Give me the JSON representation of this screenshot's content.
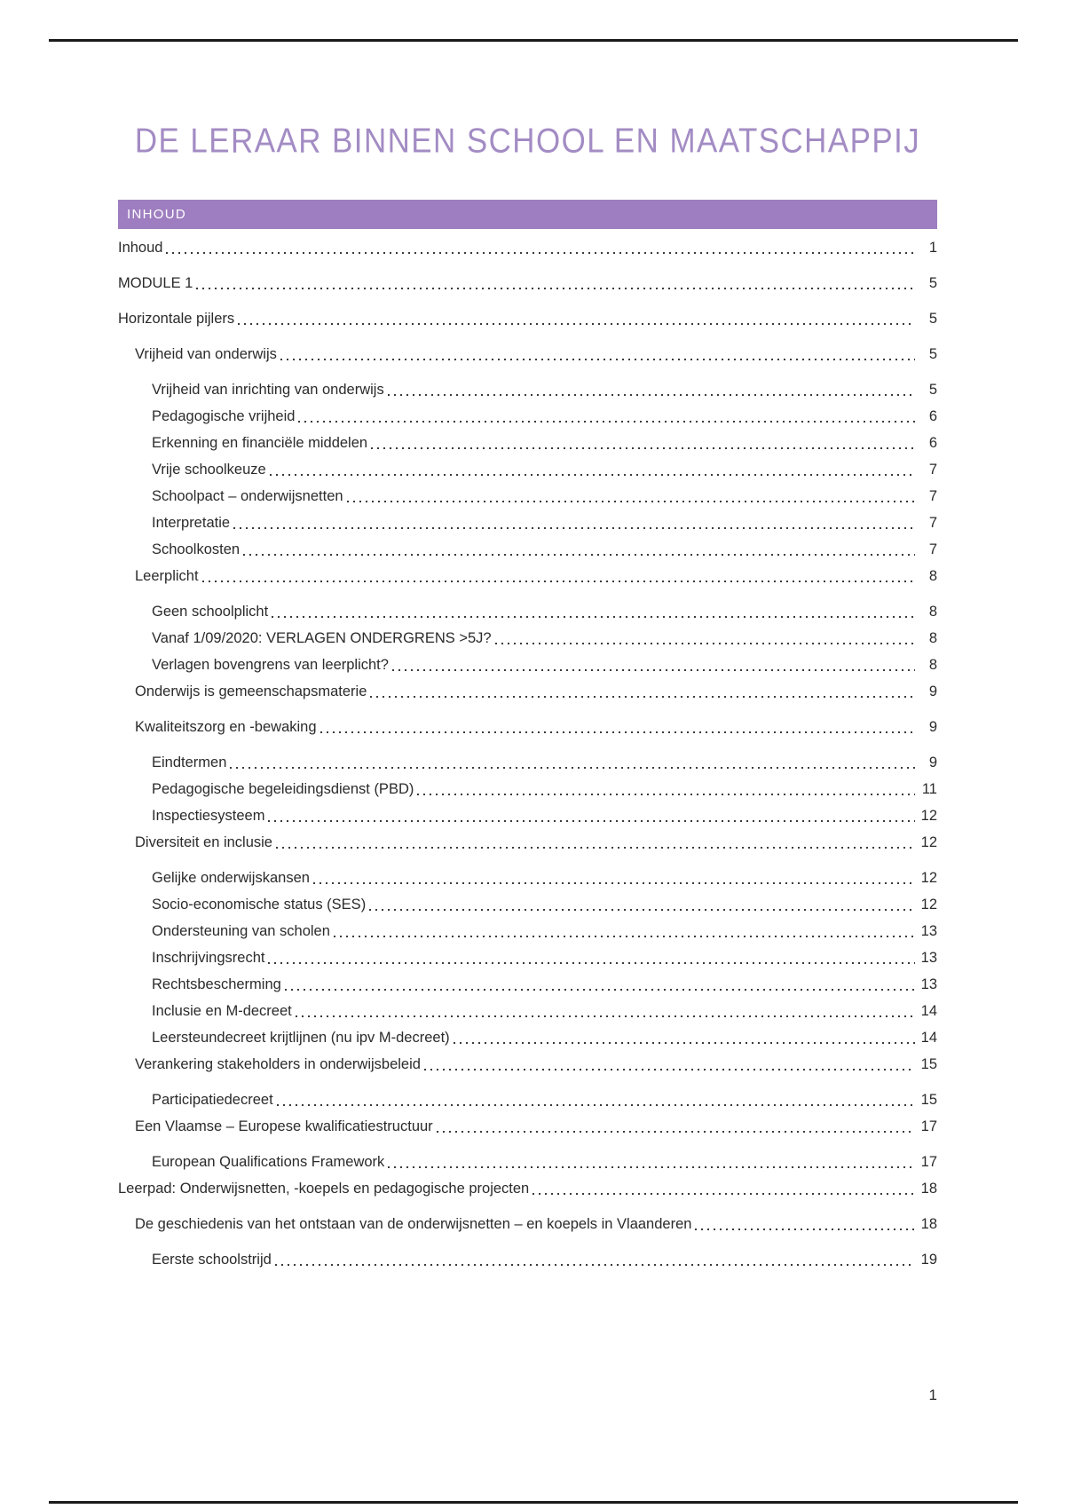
{
  "page": {
    "title": "DE LERAAR BINNEN SCHOOL EN MAATSCHAPPIJ",
    "footer_page_number": "1"
  },
  "toc": {
    "header": "INHOUD",
    "entries": [
      {
        "label": "Inhoud",
        "page": "1",
        "level": 0,
        "spaced": false
      },
      {
        "label": "MODULE 1",
        "page": "5",
        "level": 0,
        "spaced": true
      },
      {
        "label": "Horizontale pijlers",
        "page": "5",
        "level": 0,
        "spaced": true
      },
      {
        "label": "Vrijheid van onderwijs",
        "page": "5",
        "level": 1,
        "spaced": true
      },
      {
        "label": "Vrijheid van inrichting van onderwijs",
        "page": "5",
        "level": 2,
        "spaced": true
      },
      {
        "label": "Pedagogische vrijheid",
        "page": "6",
        "level": 2,
        "spaced": false
      },
      {
        "label": "Erkenning en financiële middelen",
        "page": "6",
        "level": 2,
        "spaced": false
      },
      {
        "label": "Vrije schoolkeuze",
        "page": "7",
        "level": 2,
        "spaced": false
      },
      {
        "label": "Schoolpact – onderwijsnetten",
        "page": "7",
        "level": 2,
        "spaced": false
      },
      {
        "label": "Interpretatie",
        "page": "7",
        "level": 2,
        "spaced": false
      },
      {
        "label": "Schoolkosten",
        "page": "7",
        "level": 2,
        "spaced": false
      },
      {
        "label": "Leerplicht",
        "page": "8",
        "level": 1,
        "spaced": false
      },
      {
        "label": "Geen schoolplicht",
        "page": "8",
        "level": 2,
        "spaced": true
      },
      {
        "label": "Vanaf 1/09/2020: VERLAGEN ONDERGRENS >5J?",
        "page": "8",
        "level": 2,
        "spaced": false
      },
      {
        "label": "Verlagen bovengrens van leerplicht?",
        "page": "8",
        "level": 2,
        "spaced": false
      },
      {
        "label": "Onderwijs is gemeenschapsmaterie",
        "page": "9",
        "level": 1,
        "spaced": false
      },
      {
        "label": "Kwaliteitszorg en -bewaking",
        "page": "9",
        "level": 1,
        "spaced": true
      },
      {
        "label": "Eindtermen",
        "page": "9",
        "level": 2,
        "spaced": true
      },
      {
        "label": "Pedagogische begeleidingsdienst (PBD)",
        "page": "11",
        "level": 2,
        "spaced": false
      },
      {
        "label": "Inspectiesysteem",
        "page": "12",
        "level": 2,
        "spaced": false
      },
      {
        "label": "Diversiteit en inclusie",
        "page": "12",
        "level": 1,
        "spaced": false
      },
      {
        "label": "Gelijke onderwijskansen",
        "page": "12",
        "level": 2,
        "spaced": true
      },
      {
        "label": "Socio-economische status (SES)",
        "page": "12",
        "level": 2,
        "spaced": false
      },
      {
        "label": "Ondersteuning van scholen",
        "page": "13",
        "level": 2,
        "spaced": false
      },
      {
        "label": "Inschrijvingsrecht",
        "page": "13",
        "level": 2,
        "spaced": false
      },
      {
        "label": "Rechtsbescherming",
        "page": "13",
        "level": 2,
        "spaced": false
      },
      {
        "label": "Inclusie en M-decreet",
        "page": "14",
        "level": 2,
        "spaced": false
      },
      {
        "label": "Leersteundecreet krijtlijnen (nu ipv M-decreet)",
        "page": "14",
        "level": 2,
        "spaced": false
      },
      {
        "label": "Verankering stakeholders in onderwijsbeleid",
        "page": "15",
        "level": 1,
        "spaced": false
      },
      {
        "label": "Participatiedecreet",
        "page": "15",
        "level": 2,
        "spaced": true
      },
      {
        "label": "Een Vlaamse – Europese kwalificatiestructuur",
        "page": "17",
        "level": 1,
        "spaced": false
      },
      {
        "label": "European Qualifications Framework",
        "page": "17",
        "level": 2,
        "spaced": true
      },
      {
        "label": "Leerpad: Onderwijsnetten, -koepels en pedagogische projecten",
        "page": "18",
        "level": 0,
        "spaced": false
      },
      {
        "label": "De geschiedenis van het ontstaan van de onderwijsnetten – en koepels in Vlaanderen",
        "page": "18",
        "level": 1,
        "spaced": true
      },
      {
        "label": "Eerste schoolstrijd",
        "page": "19",
        "level": 2,
        "spaced": true
      }
    ]
  },
  "colors": {
    "accent_banner": "#9e7ec0",
    "accent_title": "#a38cc4",
    "text_color": "#2b2b2b",
    "dot_color": "#3a3a3a",
    "rule_color": "#1b1b1b"
  }
}
